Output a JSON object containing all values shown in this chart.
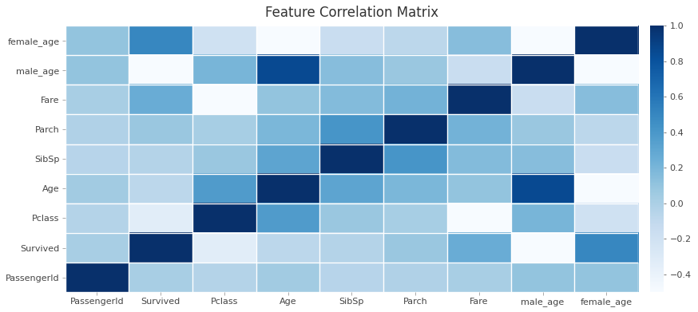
{
  "title": "Feature Correlation Matrix",
  "features": [
    "PassengerId",
    "Survived",
    "Pclass",
    "Age",
    "SibSp",
    "Parch",
    "Fare",
    "male_age",
    "female_age"
  ],
  "corr_matrix": [
    [
      1.0,
      0.01,
      -0.04,
      0.04,
      -0.06,
      -0.02,
      0.01,
      0.1,
      0.1
    ],
    [
      0.01,
      1.0,
      -0.34,
      -0.08,
      -0.04,
      0.08,
      0.26,
      -0.5,
      0.5
    ],
    [
      -0.04,
      -0.34,
      1.0,
      0.37,
      0.08,
      0.02,
      -0.55,
      0.2,
      -0.2
    ],
    [
      0.04,
      -0.08,
      0.37,
      1.0,
      0.31,
      0.19,
      0.1,
      0.85,
      -0.85
    ],
    [
      -0.06,
      -0.04,
      0.08,
      0.31,
      1.0,
      0.41,
      0.16,
      0.15,
      -0.15
    ],
    [
      -0.02,
      0.08,
      0.02,
      0.19,
      0.41,
      1.0,
      0.22,
      0.08,
      -0.08
    ],
    [
      0.01,
      0.26,
      -0.55,
      0.1,
      0.16,
      0.22,
      1.0,
      -0.15,
      0.15
    ],
    [
      0.1,
      -0.5,
      0.2,
      0.85,
      0.15,
      0.08,
      -0.15,
      1.0,
      -0.5
    ],
    [
      0.1,
      0.5,
      -0.2,
      -0.85,
      -0.15,
      -0.08,
      0.15,
      -0.5,
      1.0
    ]
  ],
  "y_labels": [
    "female_age",
    "male_age",
    "Fare",
    "Parch",
    "SibSp",
    "Age",
    "Pclass",
    "Survived",
    "PassengerId"
  ],
  "x_labels": [
    "PassengerId",
    "Survived",
    "Pclass",
    "Age",
    "SibSp",
    "Parch",
    "Fare",
    "male_age",
    "female_age"
  ],
  "vmin": -0.5,
  "vmax": 1.0,
  "colorbar_ticks": [
    1.0,
    0.8,
    0.6,
    0.4,
    0.2,
    0.0,
    -0.2,
    -0.4
  ],
  "cmap": "Blues",
  "bg_color": "#ffffff",
  "title_fontsize": 12,
  "tick_fontsize": 8
}
